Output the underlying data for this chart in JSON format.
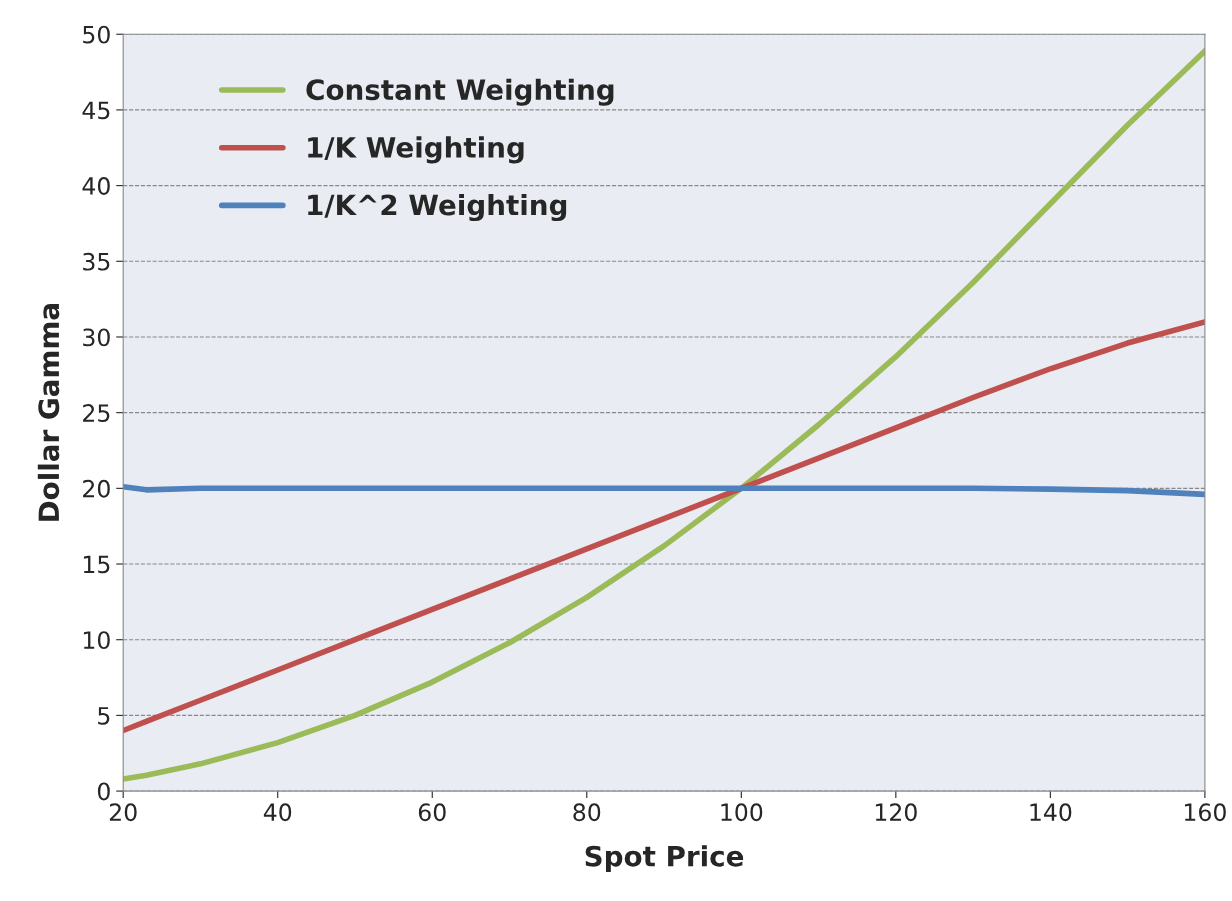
{
  "chart_data": {
    "type": "line",
    "xlabel": "Spot Price",
    "ylabel": "Dollar Gamma",
    "x": [
      20,
      23,
      30,
      40,
      50,
      60,
      70,
      80,
      90,
      100,
      110,
      120,
      130,
      140,
      150,
      160
    ],
    "series": [
      {
        "name": "Constant Weighting",
        "color": "#9bbb59",
        "values": [
          0.8,
          1.05,
          1.8,
          3.2,
          5.0,
          7.2,
          9.8,
          12.8,
          16.2,
          20,
          24.2,
          28.7,
          33.6,
          38.8,
          44.0,
          48.9
        ]
      },
      {
        "name": "1/K Weighting",
        "color": "#c0504d",
        "values": [
          4.0,
          4.6,
          6.0,
          8.0,
          10.0,
          12.0,
          14.0,
          16.0,
          18.0,
          20,
          22.0,
          24.0,
          26.0,
          27.9,
          29.6,
          31.0
        ]
      },
      {
        "name": "1/K^2 Weighting",
        "color": "#4f81bd",
        "values": [
          20.1,
          19.9,
          20,
          20,
          20,
          20,
          20,
          20,
          20,
          20,
          20,
          20,
          20,
          19.95,
          19.85,
          19.6
        ]
      }
    ],
    "xlim": [
      20,
      160
    ],
    "xticks": [
      20,
      40,
      60,
      80,
      100,
      120,
      140,
      160
    ],
    "ylim": [
      0,
      50
    ],
    "yticks": [
      0,
      5,
      10,
      15,
      20,
      25,
      30,
      35,
      40,
      45,
      50
    ],
    "grid": "y",
    "legend": "top left",
    "line_style": "solid",
    "marker": "none"
  }
}
